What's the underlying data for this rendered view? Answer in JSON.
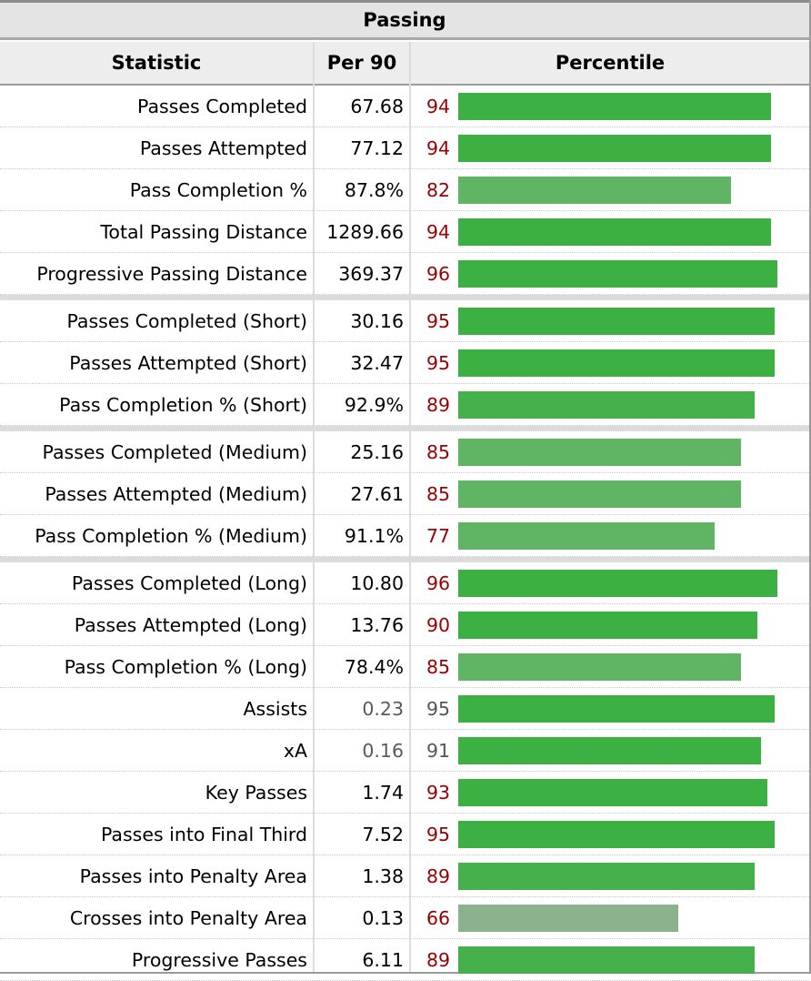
{
  "table": {
    "title": "Passing",
    "headers": {
      "statistic": "Statistic",
      "per90": "Per 90",
      "percentile": "Percentile"
    }
  },
  "colors": {
    "pct_text": "#990000",
    "pct_text_muted": "#555555",
    "bar_strong": "#3db044",
    "bar_mid": "#5fb564",
    "bar_weak": "#8ab28c"
  },
  "chart_data": {
    "type": "bar",
    "orientation": "horizontal",
    "xlim": [
      0,
      100
    ],
    "grid": false,
    "rows": [
      {
        "statistic": "Passes Completed",
        "per90": "67.68",
        "percentile": 94
      },
      {
        "statistic": "Passes Attempted",
        "per90": "77.12",
        "percentile": 94
      },
      {
        "statistic": "Pass Completion %",
        "per90": "87.8%",
        "percentile": 82
      },
      {
        "statistic": "Total Passing Distance",
        "per90": "1289.66",
        "percentile": 94
      },
      {
        "statistic": "Progressive Passing Distance",
        "per90": "369.37",
        "percentile": 96
      },
      {
        "statistic": "Passes Completed (Short)",
        "per90": "30.16",
        "percentile": 95,
        "group_start": true
      },
      {
        "statistic": "Passes Attempted (Short)",
        "per90": "32.47",
        "percentile": 95
      },
      {
        "statistic": "Pass Completion % (Short)",
        "per90": "92.9%",
        "percentile": 89
      },
      {
        "statistic": "Passes Completed (Medium)",
        "per90": "25.16",
        "percentile": 85,
        "group_start": true
      },
      {
        "statistic": "Passes Attempted (Medium)",
        "per90": "27.61",
        "percentile": 85
      },
      {
        "statistic": "Pass Completion % (Medium)",
        "per90": "91.1%",
        "percentile": 77
      },
      {
        "statistic": "Passes Completed (Long)",
        "per90": "10.80",
        "percentile": 96,
        "group_start": true
      },
      {
        "statistic": "Passes Attempted (Long)",
        "per90": "13.76",
        "percentile": 90
      },
      {
        "statistic": "Pass Completion % (Long)",
        "per90": "78.4%",
        "percentile": 85
      },
      {
        "statistic": "Assists",
        "per90": "0.23",
        "percentile": 95,
        "muted": true
      },
      {
        "statistic": "xA",
        "per90": "0.16",
        "percentile": 91,
        "muted": true
      },
      {
        "statistic": "Key Passes",
        "per90": "1.74",
        "percentile": 93
      },
      {
        "statistic": "Passes into Final Third",
        "per90": "7.52",
        "percentile": 95
      },
      {
        "statistic": "Passes into Penalty Area",
        "per90": "1.38",
        "percentile": 89
      },
      {
        "statistic": "Crosses into Penalty Area",
        "per90": "0.13",
        "percentile": 66
      },
      {
        "statistic": "Progressive Passes",
        "per90": "6.11",
        "percentile": 89
      }
    ]
  }
}
